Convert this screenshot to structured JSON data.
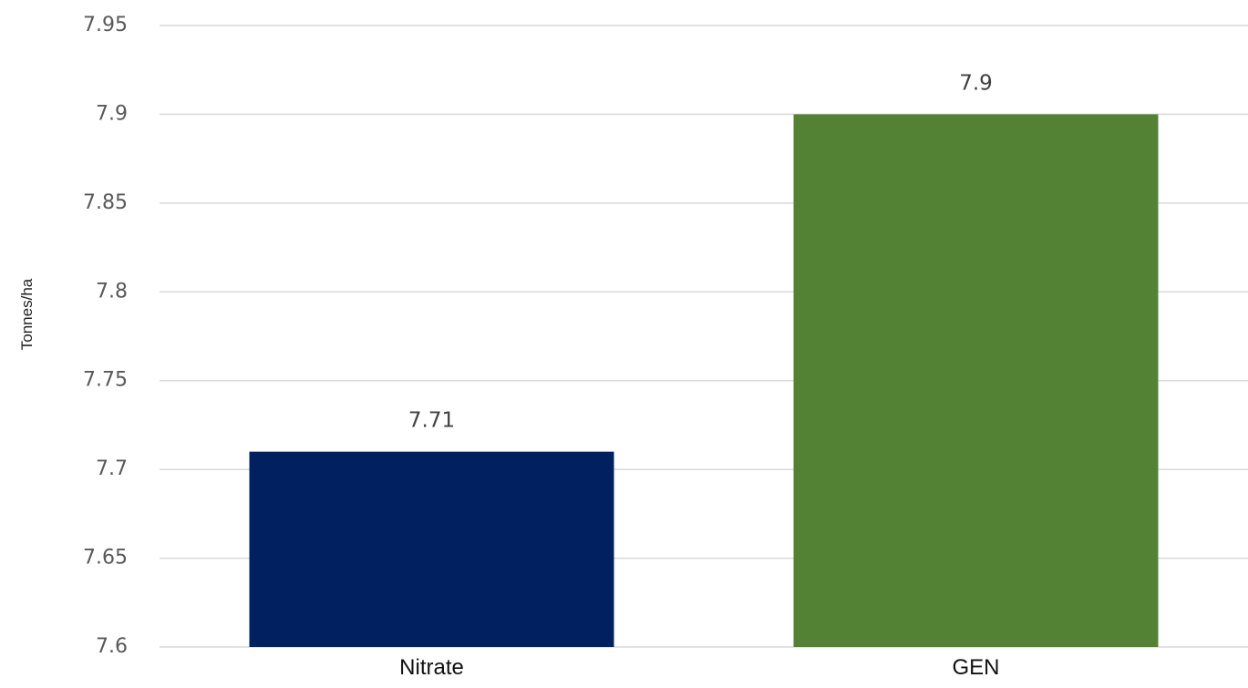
{
  "chart_data": {
    "type": "bar",
    "title": "",
    "xlabel": "",
    "ylabel": "Tonnes/ha",
    "categories": [
      "Nitrate",
      "GEN"
    ],
    "values": [
      7.71,
      7.9
    ],
    "data_labels": [
      "7.71",
      "7.9"
    ],
    "colors": [
      "#002060",
      "#548235"
    ],
    "ylim": [
      7.6,
      7.95
    ],
    "yticks": [
      7.6,
      7.65,
      7.7,
      7.75,
      7.8,
      7.85,
      7.9,
      7.95
    ],
    "ytick_labels": [
      "7.6",
      "7.65",
      "7.7",
      "7.75",
      "7.8",
      "7.85",
      "7.9",
      "7.95"
    ],
    "grid": true,
    "legend": "none"
  }
}
